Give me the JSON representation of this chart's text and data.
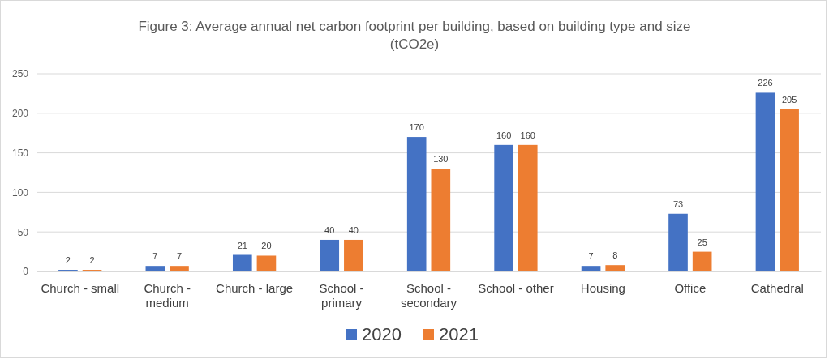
{
  "chart_data": {
    "type": "bar",
    "title": "Figure 3: Average annual net carbon footprint per building, based on building type and size (tCO2e)",
    "categories": [
      "Church - small",
      "Church - medium",
      "Church - large",
      "School - primary",
      "School - secondary",
      "School - other",
      "Housing",
      "Office",
      "Cathedral"
    ],
    "series": [
      {
        "name": "2020",
        "color": "#4472c4",
        "values": [
          2,
          7,
          21,
          40,
          170,
          160,
          7,
          73,
          226
        ]
      },
      {
        "name": "2021",
        "color": "#ed7d31",
        "values": [
          2,
          7,
          20,
          40,
          130,
          160,
          8,
          25,
          205
        ]
      }
    ],
    "ylim": [
      0,
      250
    ],
    "yticks": [
      0,
      50,
      100,
      150,
      200,
      250
    ],
    "grid": "y",
    "legend": "bottom",
    "data_labels": true
  }
}
